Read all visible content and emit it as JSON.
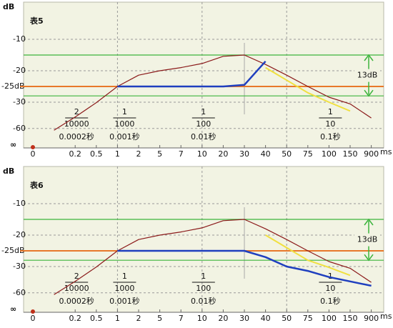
{
  "chart_data": [
    {
      "type": "line",
      "title": "表5",
      "y_label": "dB",
      "x_unit": "ms",
      "y_bottom_label": "∞",
      "categories": [
        "0",
        null,
        "0.2",
        "0.5",
        "1",
        "2",
        "5",
        "7",
        "10",
        "20",
        "30",
        "40",
        "50",
        "75",
        "100",
        "150",
        "900"
      ],
      "ylim": [
        -70,
        0
      ],
      "yticks": [
        -10,
        -20,
        {
          "value": -25,
          "label": "-25dB"
        },
        -30,
        -60
      ],
      "grid": true,
      "series": [
        {
          "color": "#8b1a1a",
          "values": [
            null,
            -62,
            -47,
            -30.5,
            -25,
            -21.4,
            -20,
            -19,
            -17.7,
            -15.4,
            -15,
            -18,
            -21.4,
            -25,
            -28.4,
            -32,
            -48
          ]
        },
        {
          "color": "#1f3fbf",
          "values": [
            null,
            null,
            null,
            null,
            -25,
            -25,
            -25,
            -25,
            -25,
            -25,
            -24.5,
            -17,
            null,
            null,
            null,
            null,
            null
          ]
        },
        {
          "color": "#f0e040",
          "values": [
            null,
            null,
            null,
            null,
            null,
            null,
            null,
            null,
            null,
            null,
            null,
            -19,
            -23,
            -27,
            -30,
            -40,
            null
          ]
        }
      ],
      "reference_lines": [
        {
          "value": -15,
          "color": "#3cb43c"
        },
        {
          "value": -28,
          "color": "#3cb43c"
        },
        {
          "value": -25,
          "color": "#e8782a"
        }
      ],
      "annotation": "13dB",
      "fractions": [
        {
          "numerator": "2",
          "denominator": "10000",
          "label": "0.0002秒"
        },
        {
          "numerator": "1",
          "denominator": "1000",
          "label": "0.001秒"
        },
        {
          "numerator": "1",
          "denominator": "100",
          "label": "0.01秒"
        },
        {
          "numerator": "1",
          "denominator": "10",
          "label": "0.1秒"
        }
      ]
    },
    {
      "type": "line",
      "title": "表6",
      "y_label": "dB",
      "x_unit": "ms",
      "y_bottom_label": "∞",
      "categories": [
        "0",
        null,
        "0.2",
        "0.5",
        "1",
        "2",
        "5",
        "7",
        "10",
        "20",
        "30",
        "40",
        "50",
        "75",
        "100",
        "150",
        "900"
      ],
      "ylim": [
        -70,
        0
      ],
      "yticks": [
        -10,
        -20,
        {
          "value": -25,
          "label": "-25dB"
        },
        -30,
        -60
      ],
      "grid": true,
      "series": [
        {
          "color": "#8b1a1a",
          "values": [
            null,
            -62,
            -47,
            -30.5,
            -25,
            -21.4,
            -20,
            -19,
            -17.7,
            -15.4,
            -15,
            -18,
            -21.4,
            -25,
            -28.4,
            -32,
            -48
          ]
        },
        {
          "color": "#1f3fbf",
          "values": [
            null,
            null,
            null,
            null,
            -25,
            -25,
            -25,
            -25,
            -25,
            -25,
            -25,
            -27,
            -30,
            -35,
            -42,
            -47,
            -52
          ]
        },
        {
          "color": "#f0e040",
          "values": [
            null,
            null,
            null,
            null,
            null,
            null,
            null,
            null,
            null,
            null,
            null,
            -20,
            -24,
            -28,
            -31,
            -40,
            null
          ]
        }
      ],
      "reference_lines": [
        {
          "value": -15,
          "color": "#3cb43c"
        },
        {
          "value": -28,
          "color": "#3cb43c"
        },
        {
          "value": -25,
          "color": "#e8782a"
        }
      ],
      "annotation": "13dB",
      "fractions": [
        {
          "numerator": "2",
          "denominator": "10000",
          "label": "0.0002秒"
        },
        {
          "numerator": "1",
          "denominator": "1000",
          "label": "0.001秒"
        },
        {
          "numerator": "1",
          "denominator": "100",
          "label": "0.01秒"
        },
        {
          "numerator": "1",
          "denominator": "10",
          "label": "0.1秒"
        }
      ]
    }
  ]
}
